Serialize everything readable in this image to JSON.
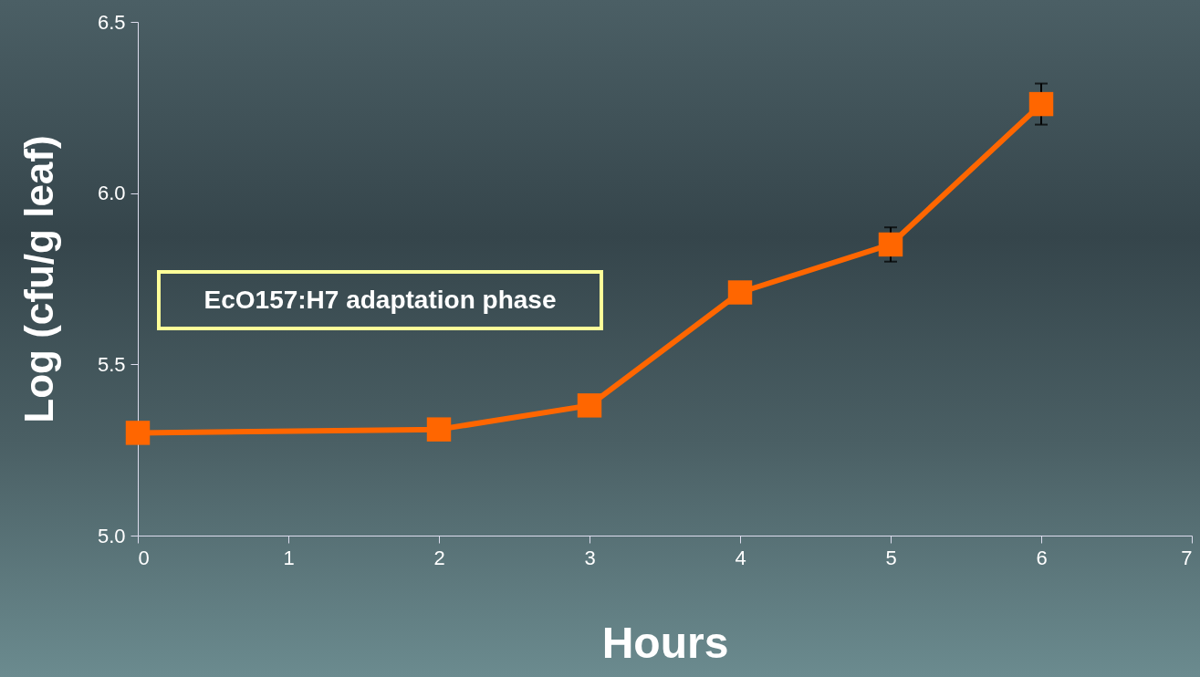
{
  "chart_data": {
    "type": "line",
    "xlabel": "Hours",
    "ylabel": "Log (cfu/g leaf)",
    "x": [
      0,
      2,
      3,
      4,
      5,
      6
    ],
    "series": [
      {
        "color": "#ff6600",
        "values": [
          5.3,
          5.31,
          5.38,
          5.71,
          5.85,
          6.26
        ],
        "errors": [
          null,
          null,
          null,
          null,
          0.05,
          0.06
        ]
      }
    ],
    "xlim": [
      0,
      7
    ],
    "xticks": [
      0,
      1,
      2,
      3,
      4,
      5,
      6,
      7
    ],
    "ylim": [
      5.0,
      6.5
    ],
    "yticks": [
      {
        "value": 5,
        "label": "5.0"
      },
      {
        "value": 5.5,
        "label": "5.5"
      },
      {
        "value": 6,
        "label": "6.0"
      },
      {
        "value": 6.5,
        "label": "6.5"
      }
    ],
    "marker": "square",
    "line_style": "solid",
    "grid": false,
    "annotations": [
      "EcO157:H7 adaptation phase"
    ]
  }
}
